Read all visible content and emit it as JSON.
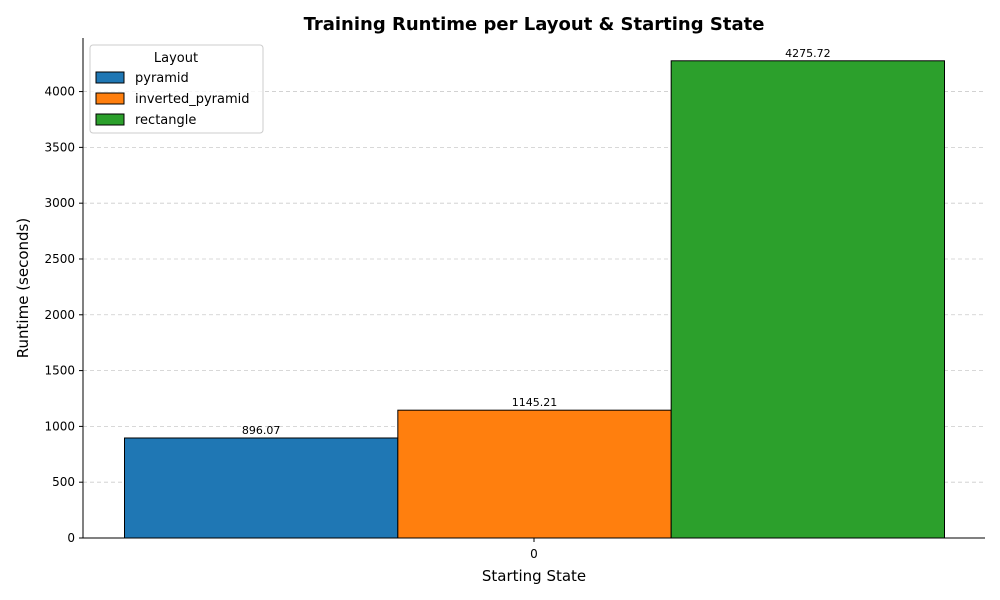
{
  "chart_data": {
    "type": "bar",
    "title": "Training Runtime per Layout & Starting State",
    "xlabel": "Starting State",
    "ylabel": "Runtime (seconds)",
    "categories": [
      "0"
    ],
    "series": [
      {
        "name": "pyramid",
        "values": [
          896.07
        ],
        "color": "#1f77b4"
      },
      {
        "name": "inverted_pyramid",
        "values": [
          1145.21
        ],
        "color": "#ff7f0e"
      },
      {
        "name": "rectangle",
        "values": [
          4275.72
        ],
        "color": "#2ca02c"
      }
    ],
    "data_labels": [
      "896.07",
      "1145.21",
      "4275.72"
    ],
    "ylim": [
      0,
      4480
    ],
    "yticks": [
      0,
      500,
      1000,
      1500,
      2000,
      2500,
      3000,
      3500,
      4000
    ],
    "grid": "y-dashed",
    "legend": {
      "title": "Layout",
      "placement": "upper-left"
    }
  }
}
